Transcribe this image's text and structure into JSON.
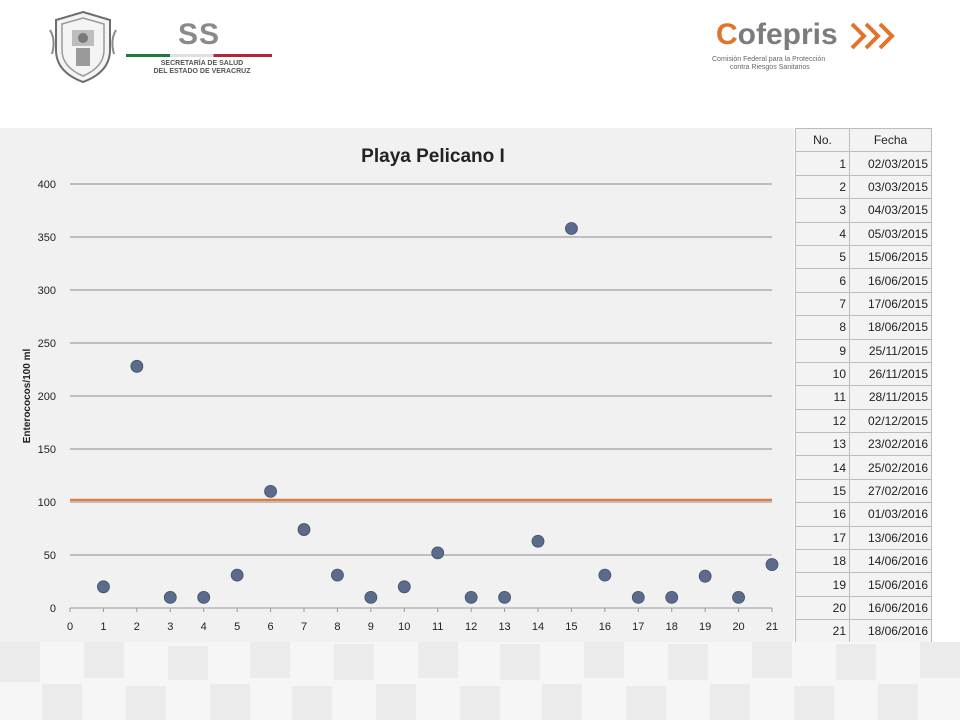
{
  "header": {
    "ss_logo_text": "SS",
    "ss_subtitle_line1": "SECRETARÍA DE SALUD",
    "ss_subtitle_line2": "DEL ESTADO DE VERACRUZ",
    "cofepris_text": "Cofepris",
    "cofepris_subtitle_line1": "Comisión Federal para la Protección",
    "cofepris_subtitle_line2": "contra Riesgos Sanitarios",
    "colors": {
      "cofepris_accent": "#e0742a",
      "logo_gray": "#7c7c7c"
    }
  },
  "chart_data": {
    "type": "scatter",
    "title": "Playa Pelicano I",
    "xlabel": "",
    "ylabel": "Enterococos/100 ml",
    "xlim": [
      0,
      21
    ],
    "ylim": [
      0,
      400
    ],
    "x_ticks": [
      0,
      1,
      2,
      3,
      4,
      5,
      6,
      7,
      8,
      9,
      10,
      11,
      12,
      13,
      14,
      15,
      16,
      17,
      18,
      19,
      20,
      21
    ],
    "y_ticks": [
      0,
      50,
      100,
      150,
      200,
      250,
      300,
      350,
      400
    ],
    "grid": "horizontal",
    "series": [
      {
        "x": [
          1,
          2,
          3,
          4,
          5,
          6,
          7,
          8,
          9,
          10,
          11,
          12,
          13,
          14,
          15,
          16,
          17,
          18,
          19,
          20,
          21
        ],
        "y": [
          20,
          228,
          10,
          10,
          31,
          110,
          74,
          31,
          10,
          20,
          52,
          10,
          10,
          63,
          358,
          31,
          10,
          10,
          30,
          10,
          41
        ],
        "color": "#5b6b8c"
      }
    ],
    "reference_line": {
      "y": 102,
      "color": "#e07b39"
    }
  },
  "table": {
    "headers": [
      "No.",
      "Fecha"
    ],
    "rows": [
      [
        "1",
        "02/03/2015"
      ],
      [
        "2",
        "03/03/2015"
      ],
      [
        "3",
        "04/03/2015"
      ],
      [
        "4",
        "05/03/2015"
      ],
      [
        "5",
        "15/06/2015"
      ],
      [
        "6",
        "16/06/2015"
      ],
      [
        "7",
        "17/06/2015"
      ],
      [
        "8",
        "18/06/2015"
      ],
      [
        "9",
        "25/11/2015"
      ],
      [
        "10",
        "26/11/2015"
      ],
      [
        "11",
        "28/11/2015"
      ],
      [
        "12",
        "02/12/2015"
      ],
      [
        "13",
        "23/02/2016"
      ],
      [
        "14",
        "25/02/2016"
      ],
      [
        "15",
        "27/02/2016"
      ],
      [
        "16",
        "01/03/2016"
      ],
      [
        "17",
        "13/06/2016"
      ],
      [
        "18",
        "14/06/2016"
      ],
      [
        "19",
        "15/06/2016"
      ],
      [
        "20",
        "16/06/2016"
      ],
      [
        "21",
        "18/06/2016"
      ]
    ]
  }
}
